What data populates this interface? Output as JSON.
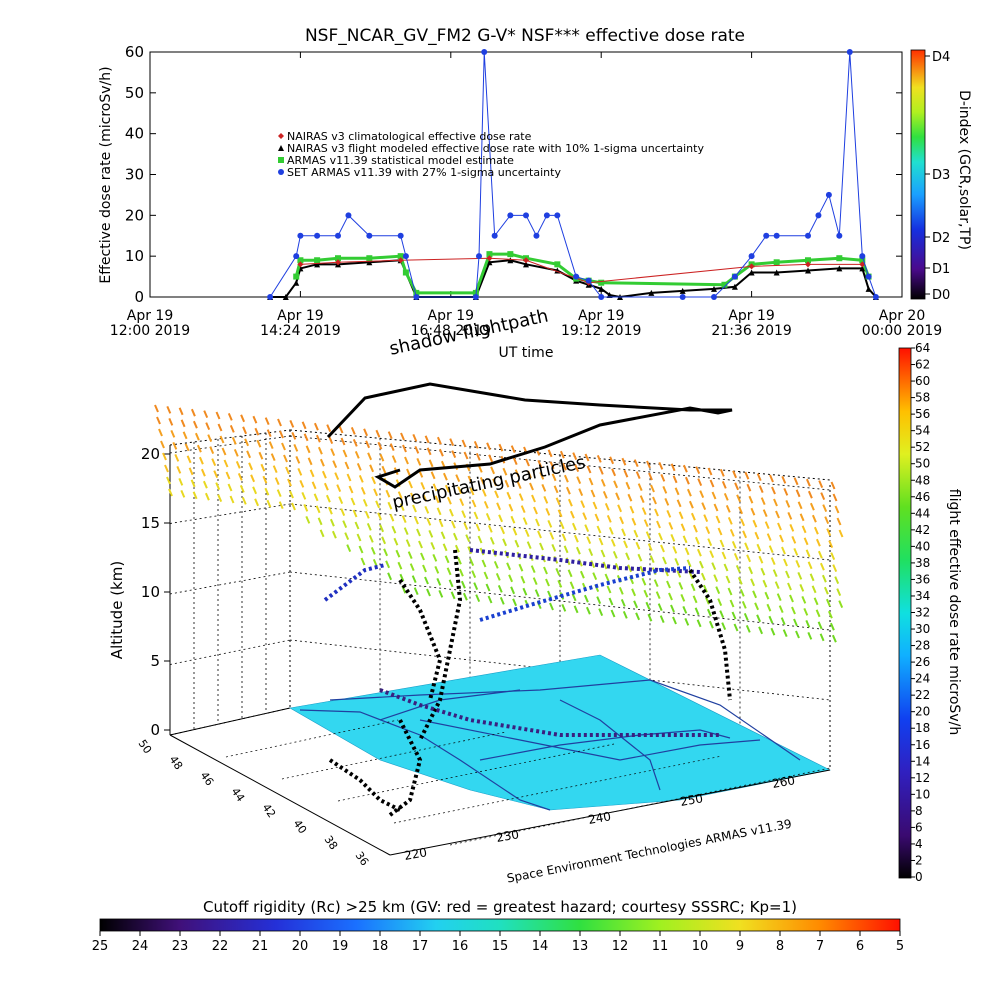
{
  "top_chart": {
    "title": "NSF_NCAR_GV_FM2 G-V* NSF*** effective dose rate",
    "ylabel": "Effective dose rate (microSv/h)",
    "xlabel": "UT time",
    "yticks": [
      "0",
      "10",
      "20",
      "30",
      "40",
      "50",
      "60"
    ],
    "xticks": [
      {
        "day": "Apr 19",
        "time": "12:00 2019"
      },
      {
        "day": "Apr 19",
        "time": "14:24 2019"
      },
      {
        "day": "Apr 19",
        "time": "16:48 2019"
      },
      {
        "day": "Apr 19",
        "time": "19:12 2019"
      },
      {
        "day": "Apr 19",
        "time": "21:36 2019"
      },
      {
        "day": "Apr 20",
        "time": "00:00 2019"
      }
    ],
    "legend": [
      {
        "label": "NAIRAS v3 climatological effective dose rate",
        "color": "#cc2222",
        "marker": "diamond"
      },
      {
        "label": "NAIRAS v3 flight modeled effective dose rate with 10% 1-sigma uncertainty",
        "color": "#000000",
        "marker": "triangle"
      },
      {
        "label": "ARMAS v11.39 statistical model estimate",
        "color": "#33cc33",
        "marker": "square"
      },
      {
        "label": "SET ARMAS v11.39 with 27% 1-sigma uncertainty",
        "color": "#1f3fe0",
        "marker": "circle"
      }
    ],
    "dindex": {
      "label": "D-index (GCR,solar,TP)",
      "ticks": [
        "D0",
        "D1",
        "D2",
        "D3",
        "D4"
      ]
    }
  },
  "chart_data": [
    {
      "type": "line",
      "title": "NSF_NCAR_GV_FM2 G-V* NSF*** effective dose rate",
      "xlabel": "UT time",
      "ylabel": "Effective dose rate (microSv/h)",
      "xlim": [
        "2019-04-19 12:00",
        "2019-04-20 00:00"
      ],
      "ylim": [
        0,
        60
      ],
      "grid": false,
      "legend_position": "upper-center",
      "series": [
        {
          "name": "NAIRAS v3 flight modeled effective dose rate with 10% 1-sigma uncertainty",
          "x": [
            "13:55",
            "14:10",
            "14:20",
            "14:24",
            "14:40",
            "15:00",
            "15:30",
            "16:00",
            "16:05",
            "16:15",
            "17:12",
            "17:25",
            "17:45",
            "18:00",
            "18:30",
            "18:48",
            "19:00",
            "19:12",
            "19:20",
            "19:30",
            "20:00",
            "20:30",
            "21:00",
            "21:20",
            "21:36",
            "22:00",
            "22:30",
            "23:00",
            "23:22",
            "23:28",
            "23:35"
          ],
          "y": [
            0,
            0,
            3.5,
            7,
            8,
            8,
            8.5,
            9,
            6,
            0,
            0,
            8.5,
            9,
            8,
            6.5,
            4,
            3,
            2,
            0.5,
            0,
            1,
            1.5,
            2,
            2.5,
            6,
            6,
            6.5,
            7,
            7,
            2,
            0
          ]
        },
        {
          "name": "ARMAS v11.39 statistical model estimate",
          "x": [
            "14:20",
            "14:24",
            "14:40",
            "15:00",
            "15:30",
            "16:00",
            "16:05",
            "16:15",
            "17:12",
            "17:25",
            "17:45",
            "18:00",
            "18:30",
            "18:48",
            "19:00",
            "19:12",
            "21:10",
            "21:20",
            "21:36",
            "22:00",
            "22:30",
            "23:00",
            "23:22",
            "23:28"
          ],
          "y": [
            5,
            9,
            9,
            9.5,
            9.5,
            10,
            6,
            1,
            1,
            10.5,
            10.5,
            9.5,
            8,
            4.5,
            4,
            3.5,
            3,
            5,
            8,
            8.5,
            9,
            9.5,
            9,
            5
          ]
        },
        {
          "name": "NAIRAS v3 climatological effective dose rate",
          "x": [
            "14:24",
            "15:00",
            "16:00",
            "17:25",
            "18:00",
            "19:00",
            "21:36",
            "22:30",
            "23:22"
          ],
          "y": [
            8,
            8.5,
            9,
            9.5,
            9,
            3.5,
            7.5,
            8,
            8
          ]
        },
        {
          "name": "SET ARMAS v11.39 with 27% 1-sigma uncertainty",
          "x": [
            "13:55",
            "14:20",
            "14:24",
            "14:40",
            "15:00",
            "15:10",
            "15:30",
            "16:00",
            "16:05",
            "16:15",
            "17:12",
            "17:15",
            "17:20",
            "17:30",
            "17:45",
            "18:00",
            "18:10",
            "18:20",
            "18:30",
            "18:48",
            "19:00",
            "19:12",
            "20:30",
            "21:00",
            "21:20",
            "21:36",
            "21:50",
            "22:00",
            "22:30",
            "22:40",
            "22:50",
            "23:00",
            "23:10",
            "23:22",
            "23:28",
            "23:35"
          ],
          "y": [
            0,
            10,
            15,
            15,
            15,
            20,
            15,
            15,
            10,
            0,
            0,
            10,
            60,
            15,
            20,
            20,
            15,
            20,
            20,
            5,
            4,
            0,
            0,
            0,
            5,
            10,
            15,
            15,
            15,
            20,
            25,
            15,
            60,
            10,
            5,
            0
          ]
        }
      ]
    },
    {
      "type": "scatter",
      "title": "shadow flightpath",
      "xlabel": "",
      "ylabel": "Altitude (km)",
      "zlim": [
        0,
        20
      ],
      "x_ticks": [
        "220",
        "230",
        "240",
        "250",
        "260"
      ],
      "y_ticks": [
        "50",
        "48",
        "46",
        "44",
        "42",
        "40",
        "38",
        "36"
      ],
      "z_ticks": [
        "0",
        "5",
        "10",
        "15",
        "20"
      ],
      "colorbar": {
        "label": "flight effective dose rate microSv/h",
        "min": 0,
        "max": 64,
        "ticks": [
          "0",
          "2",
          "4",
          "6",
          "8",
          "10",
          "12",
          "14",
          "16",
          "18",
          "20",
          "22",
          "24",
          "26",
          "28",
          "30",
          "32",
          "34",
          "36",
          "38",
          "40",
          "42",
          "44",
          "46",
          "48",
          "50",
          "52",
          "54",
          "56",
          "58",
          "60",
          "62",
          "64"
        ]
      }
    },
    {
      "type": "heatmap",
      "title": "Cutoff rigidity (Rc) >25 km (GV: red = greatest hazard; courtesy SSSRC; Kp=1)",
      "colorbar_ticks": [
        "25",
        "24",
        "23",
        "22",
        "21",
        "20",
        "19",
        "18",
        "17",
        "16",
        "15",
        "14",
        "13",
        "12",
        "11",
        "10",
        "9",
        "8",
        "7",
        "6",
        "5"
      ],
      "range": [
        25,
        5
      ]
    }
  ],
  "scene": {
    "shadow_label": "shadow flightpath",
    "precip_label": "precipitating particles",
    "credit": "Space Environment Technologies ARMAS v11.39",
    "altitude_label": "Altitude (km)",
    "colorbar_label": "flight effective dose rate microSv/h"
  },
  "rigidity": {
    "title": "Cutoff rigidity (Rc) >25 km (GV: red = greatest hazard; courtesy SSSRC; Kp=1)"
  },
  "colors": {
    "line_blue": "#1f3fe0",
    "nairas_black": "#000000",
    "armas_green": "#33cc33",
    "nairas_red": "#cc2222",
    "map_cyan": "#33d7f0"
  }
}
